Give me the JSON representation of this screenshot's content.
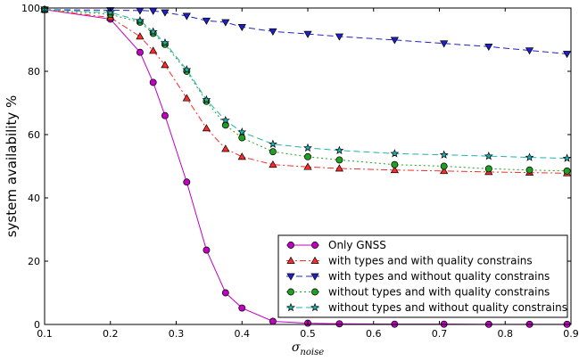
{
  "chart_data": {
    "type": "line",
    "xlabel": "σ",
    "xlabel_sub": "noise",
    "ylabel": "system availability %",
    "xlim": [
      0.1,
      0.9
    ],
    "ylim": [
      0,
      100
    ],
    "xticks": [
      "0.1",
      "0.2",
      "0.3",
      "0.4",
      "0.5",
      "0.6",
      "0.7",
      "0.8",
      "0.9"
    ],
    "yticks": [
      "0",
      "20",
      "40",
      "60",
      "80",
      "100"
    ],
    "grid": false,
    "legend_position": "lower-right",
    "series": [
      {
        "name": "Only GNSS",
        "color": "#c000c0",
        "marker": "circle",
        "line": "solid",
        "points": [
          [
            0.1,
            99.5
          ],
          [
            0.2,
            96.5
          ],
          [
            0.245,
            86
          ],
          [
            0.265,
            76.5
          ],
          [
            0.283,
            66
          ],
          [
            0.316,
            45
          ],
          [
            0.346,
            23.5
          ],
          [
            0.375,
            10
          ],
          [
            0.4,
            5.2
          ],
          [
            0.447,
            1
          ],
          [
            0.5,
            0.4
          ],
          [
            0.548,
            0.2
          ],
          [
            0.632,
            0.1
          ],
          [
            0.707,
            0.1
          ],
          [
            0.775,
            0.05
          ],
          [
            0.837,
            0.05
          ],
          [
            0.894,
            0.05
          ]
        ]
      },
      {
        "name": "with types and with quality constrains",
        "color": "#ff2a2a",
        "marker": "triangle-up",
        "line": "dashdot",
        "points": [
          [
            0.1,
            99.5
          ],
          [
            0.2,
            97
          ],
          [
            0.245,
            91
          ],
          [
            0.265,
            86.5
          ],
          [
            0.283,
            82
          ],
          [
            0.316,
            71.5
          ],
          [
            0.346,
            62
          ],
          [
            0.375,
            55.5
          ],
          [
            0.4,
            53
          ],
          [
            0.447,
            50.5
          ],
          [
            0.5,
            49.8
          ],
          [
            0.548,
            49.3
          ],
          [
            0.632,
            48.8
          ],
          [
            0.707,
            48.5
          ],
          [
            0.775,
            48.2
          ],
          [
            0.837,
            48
          ],
          [
            0.894,
            47.8
          ]
        ]
      },
      {
        "name": "with types and without quality constrains",
        "color": "#2020c8",
        "marker": "triangle-down",
        "line": "dashed",
        "points": [
          [
            0.1,
            99.5
          ],
          [
            0.2,
            99.3
          ],
          [
            0.245,
            99.2
          ],
          [
            0.265,
            99.1
          ],
          [
            0.283,
            98.6
          ],
          [
            0.316,
            97.5
          ],
          [
            0.346,
            96
          ],
          [
            0.375,
            95.5
          ],
          [
            0.4,
            94
          ],
          [
            0.447,
            92.6
          ],
          [
            0.5,
            91.8
          ],
          [
            0.548,
            91
          ],
          [
            0.632,
            89.9
          ],
          [
            0.707,
            88.8
          ],
          [
            0.775,
            87.8
          ],
          [
            0.837,
            86.6
          ],
          [
            0.894,
            85.5
          ]
        ]
      },
      {
        "name": "without types and with quality constrains",
        "color": "#20a020",
        "marker": "circle",
        "line": "dotted",
        "points": [
          [
            0.1,
            99.5
          ],
          [
            0.2,
            98
          ],
          [
            0.245,
            95.5
          ],
          [
            0.265,
            92
          ],
          [
            0.283,
            88.5
          ],
          [
            0.316,
            80
          ],
          [
            0.346,
            70.5
          ],
          [
            0.375,
            63
          ],
          [
            0.4,
            59
          ],
          [
            0.447,
            54.6
          ],
          [
            0.5,
            53
          ],
          [
            0.548,
            52
          ],
          [
            0.632,
            50.5
          ],
          [
            0.707,
            50
          ],
          [
            0.775,
            49.2
          ],
          [
            0.837,
            48.8
          ],
          [
            0.894,
            48.5
          ]
        ]
      },
      {
        "name": "without types and without quality constrains",
        "color": "#20b0b0",
        "marker": "star",
        "line": "dashed",
        "points": [
          [
            0.1,
            99.5
          ],
          [
            0.2,
            98.6
          ],
          [
            0.245,
            96
          ],
          [
            0.265,
            92.5
          ],
          [
            0.283,
            89
          ],
          [
            0.316,
            80.5
          ],
          [
            0.346,
            71
          ],
          [
            0.375,
            64.5
          ],
          [
            0.4,
            60.8
          ],
          [
            0.447,
            57
          ],
          [
            0.5,
            55.8
          ],
          [
            0.548,
            55
          ],
          [
            0.632,
            54
          ],
          [
            0.707,
            53.6
          ],
          [
            0.775,
            53.2
          ],
          [
            0.837,
            52.8
          ],
          [
            0.894,
            52.5
          ]
        ]
      }
    ]
  }
}
